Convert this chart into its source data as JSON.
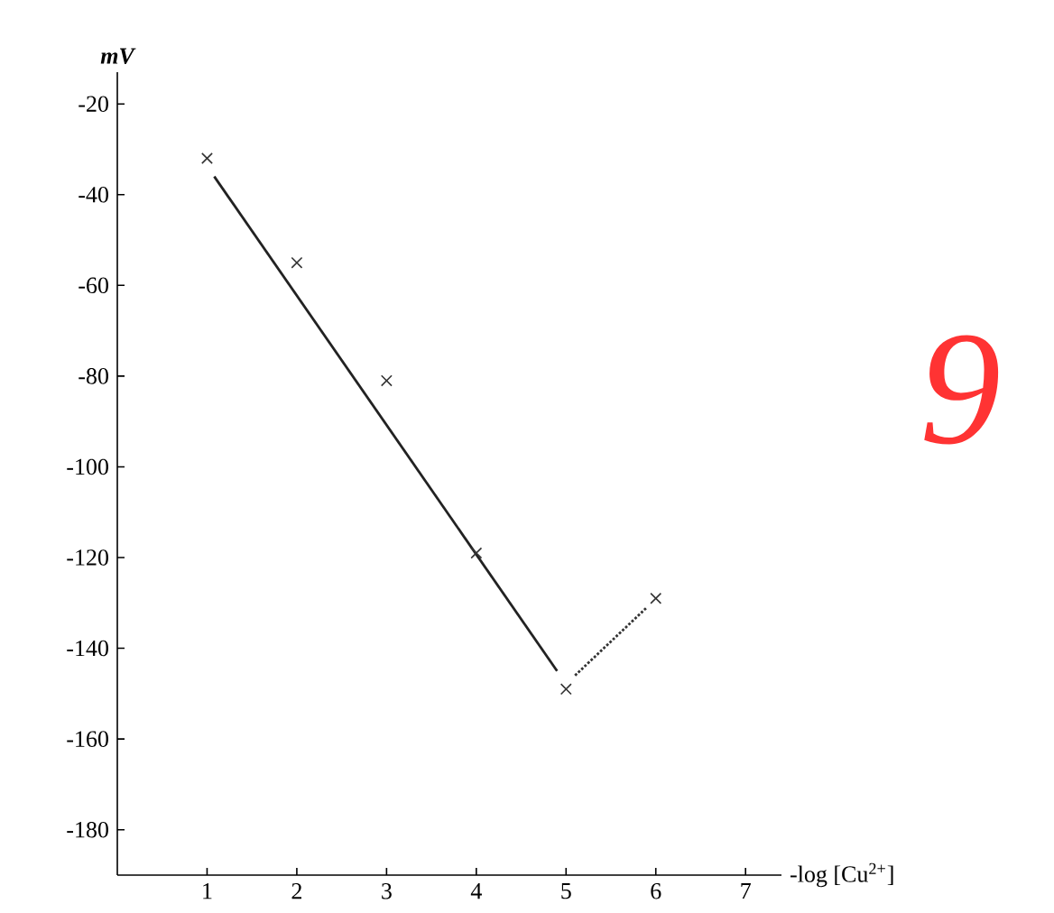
{
  "chart_data": {
    "type": "scatter",
    "xlabel": "-log [Cu$^{2+}$]",
    "ylabel": "mV",
    "annotations": [
      "9"
    ],
    "xlim": [
      0,
      7.4
    ],
    "ylim": [
      -190,
      -13
    ],
    "xticks": [
      1,
      2,
      3,
      4,
      5,
      6,
      7
    ],
    "yticks": [
      -20,
      -40,
      -60,
      -80,
      -100,
      -120,
      -140,
      -160,
      -180
    ],
    "grid": false,
    "series": [
      {
        "x": [
          1,
          2,
          3,
          4,
          5,
          6
        ],
        "values": [
          -32,
          -55,
          -81,
          -119,
          -149,
          -129
        ],
        "color": "#333333",
        "marker": "cross"
      },
      {
        "type": "line",
        "x": [
          1.08,
          4.9
        ],
        "values": [
          -36,
          -145
        ],
        "color": "#222222",
        "line_style": "solid",
        "marker": "none"
      },
      {
        "type": "line",
        "x": [
          5.1,
          5.9
        ],
        "values": [
          -146,
          -131
        ],
        "color": "#333333",
        "line_style": "dotted",
        "marker": "none"
      }
    ]
  }
}
